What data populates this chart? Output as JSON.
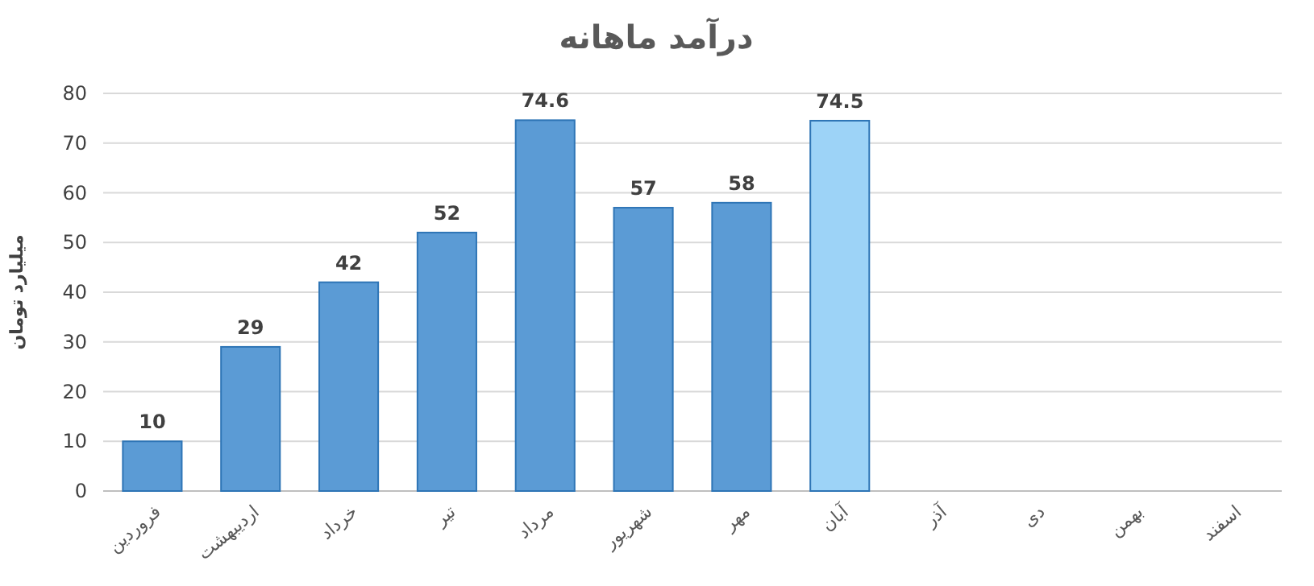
{
  "chart_data": {
    "type": "bar",
    "title": "درآمد ماهانه",
    "ylabel": "میلیارد تومان",
    "categories": [
      "فروردین",
      "اردیبهشت",
      "خرداد",
      "تیر",
      "مرداد",
      "شهریور",
      "مهر",
      "آبان",
      "آذر",
      "دی",
      "بهمن",
      "اسفند"
    ],
    "values": [
      10,
      29,
      42,
      52,
      74.6,
      57,
      58,
      74.5,
      null,
      null,
      null,
      null
    ],
    "colors": [
      "#5b9bd5",
      "#5b9bd5",
      "#5b9bd5",
      "#5b9bd5",
      "#5b9bd5",
      "#5b9bd5",
      "#5b9bd5",
      "#9dd3f7",
      null,
      null,
      null,
      null
    ],
    "ylim": [
      0,
      80
    ],
    "yticks": [
      0,
      10,
      20,
      30,
      40,
      50,
      60,
      70,
      80
    ],
    "grid": "y",
    "data_labels": true
  }
}
